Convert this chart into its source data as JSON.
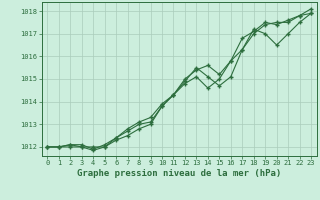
{
  "title": "Graphe pression niveau de la mer (hPa)",
  "background_color": "#cceedd",
  "grid_color": "#aaccbb",
  "line_color": "#2d6e3e",
  "xlim": [
    -0.5,
    23.5
  ],
  "ylim": [
    1011.6,
    1018.4
  ],
  "yticks": [
    1012,
    1013,
    1014,
    1015,
    1016,
    1017,
    1018
  ],
  "xticks": [
    0,
    1,
    2,
    3,
    4,
    5,
    6,
    7,
    8,
    9,
    10,
    11,
    12,
    13,
    14,
    15,
    16,
    17,
    18,
    19,
    20,
    21,
    22,
    23
  ],
  "hours": [
    0,
    1,
    2,
    3,
    4,
    5,
    6,
    7,
    8,
    9,
    10,
    11,
    12,
    13,
    14,
    15,
    16,
    17,
    18,
    19,
    20,
    21,
    22,
    23
  ],
  "line1": [
    1012.0,
    1012.0,
    1012.1,
    1012.1,
    1011.9,
    1012.1,
    1012.4,
    1012.8,
    1013.1,
    1013.3,
    1013.9,
    1014.3,
    1014.8,
    1015.1,
    1014.6,
    1015.0,
    1015.8,
    1016.3,
    1017.0,
    1017.4,
    1017.5,
    1017.5,
    1017.8,
    1017.9
  ],
  "line2": [
    1012.0,
    1012.0,
    1012.1,
    1012.0,
    1011.85,
    1012.0,
    1012.3,
    1012.5,
    1012.8,
    1013.0,
    1013.8,
    1014.3,
    1014.9,
    1015.5,
    1015.1,
    1014.7,
    1015.1,
    1016.3,
    1017.2,
    1017.0,
    1016.5,
    1017.0,
    1017.5,
    1017.9
  ],
  "line3": [
    1012.0,
    1012.0,
    1012.0,
    1012.0,
    1012.0,
    1012.0,
    1012.4,
    1012.7,
    1013.0,
    1013.1,
    1013.8,
    1014.3,
    1015.0,
    1015.4,
    1015.6,
    1015.2,
    1015.8,
    1016.8,
    1017.1,
    1017.5,
    1017.4,
    1017.6,
    1017.8,
    1018.1
  ],
  "title_fontsize": 6.5,
  "tick_fontsize": 5
}
